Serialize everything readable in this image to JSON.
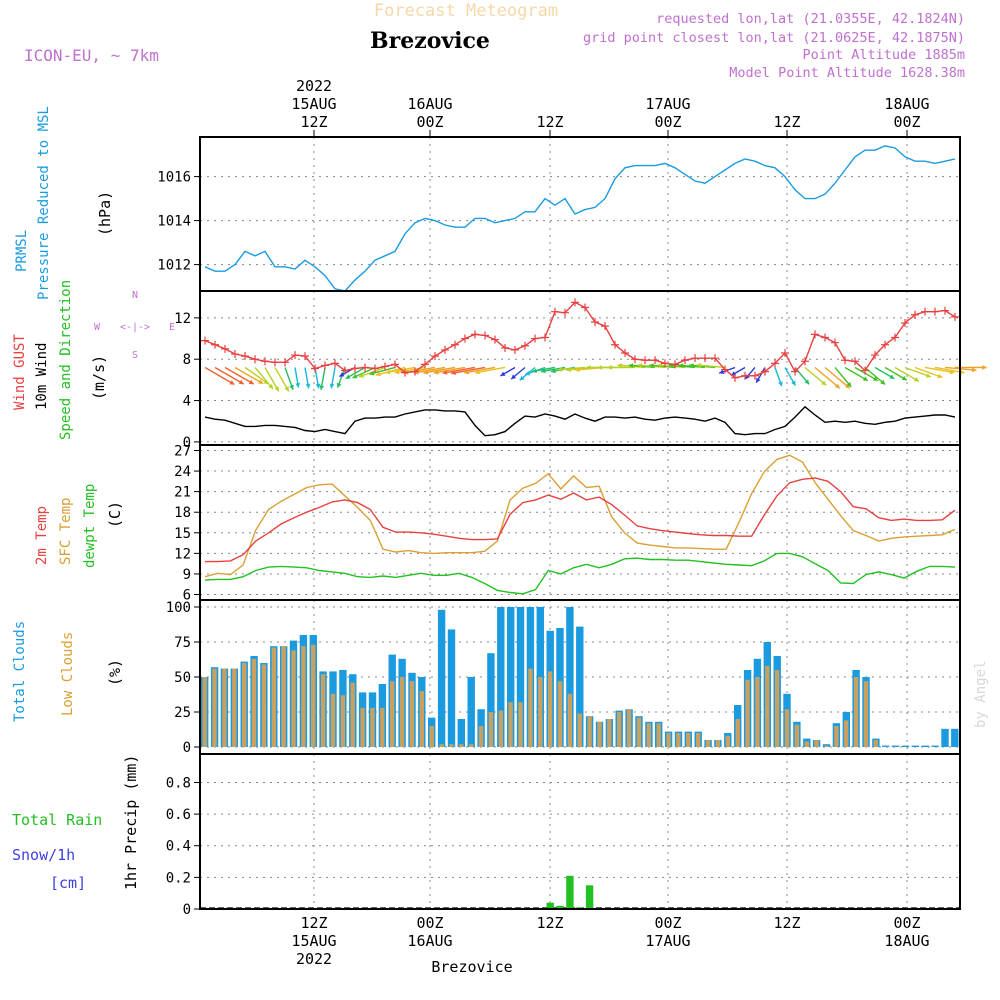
{
  "header": {
    "title": "Forecast Meteogram",
    "location": "Brezovice",
    "model": "ICON-EU, ~ 7km",
    "requested": "requested lon,lat (21.0355E, 42.1824N)",
    "gridpoint": "grid point closest lon,lat (21.0625E, 42.1875N)",
    "point_alt": "Point Altitude 1885m",
    "model_alt": "Model Point Altitude 1628.38m",
    "credit": "by Angel",
    "footer_location": "Brezovice"
  },
  "colors": {
    "pressure": "#1a9be0",
    "gust": "#e84040",
    "wind": "#000000",
    "sfc_temp": "#d9a033",
    "t2m": "#e84040",
    "dewpt": "#22c022",
    "total_clouds": "#1a9be0",
    "low_clouds": "#c8a060",
    "rain": "#22c022",
    "snow": "#4040e0",
    "header": "#c070d0"
  },
  "time_axis": {
    "top_ticks": [
      {
        "line1": "2022",
        "line2": "15AUG",
        "line3": "12Z"
      },
      {
        "line1": "",
        "line2": "16AUG",
        "line3": "00Z"
      },
      {
        "line1": "",
        "line2": "",
        "line3": "12Z"
      },
      {
        "line1": "",
        "line2": "17AUG",
        "line3": "00Z"
      },
      {
        "line1": "",
        "line2": "",
        "line3": "12Z"
      },
      {
        "line1": "",
        "line2": "18AUG",
        "line3": "00Z"
      }
    ],
    "bottom_ticks": [
      {
        "line1": "12Z",
        "line2": "15AUG",
        "line3": "2022"
      },
      {
        "line1": "00Z",
        "line2": "16AUG",
        "line3": ""
      },
      {
        "line1": "12Z",
        "line2": "",
        "line3": ""
      },
      {
        "line1": "00Z",
        "line2": "17AUG",
        "line3": ""
      },
      {
        "line1": "12Z",
        "line2": "",
        "line3": ""
      },
      {
        "line1": "00Z",
        "line2": "18AUG",
        "line3": ""
      }
    ]
  },
  "chart_data": [
    {
      "type": "line",
      "title": "PRMSL Pressure Reduced to MSL",
      "label_colored_1": "PRMSL",
      "label_colored_2": "Pressure Reduced to MSL",
      "ylabel": "(hPa)",
      "ylim": [
        1010.8,
        1017.8
      ],
      "yticks": [
        1012,
        1014,
        1016
      ],
      "series": [
        {
          "name": "PRMSL",
          "values": [
            1011.9,
            1011.7,
            1011.7,
            1012.0,
            1012.6,
            1012.4,
            1012.6,
            1011.9,
            1011.9,
            1011.8,
            1012.2,
            1011.9,
            1011.5,
            1010.9,
            1010.8,
            1011.3,
            1011.7,
            1012.2,
            1012.4,
            1012.6,
            1013.4,
            1013.9,
            1014.1,
            1014.0,
            1013.8,
            1013.7,
            1013.7,
            1014.1,
            1014.1,
            1013.9,
            1014.0,
            1014.1,
            1014.4,
            1014.4,
            1015.0,
            1014.7,
            1015.0,
            1014.3,
            1014.5,
            1014.6,
            1015.0,
            1015.9,
            1016.4,
            1016.5,
            1016.5,
            1016.5,
            1016.6,
            1016.4,
            1016.1,
            1015.8,
            1015.7,
            1016.0,
            1016.3,
            1016.6,
            1016.8,
            1016.7,
            1016.5,
            1016.4,
            1016.0,
            1015.4,
            1015.0,
            1015.0,
            1015.2,
            1015.7,
            1016.3,
            1016.9,
            1017.2,
            1017.2,
            1017.4,
            1017.3,
            1016.9,
            1016.7,
            1016.7,
            1016.6,
            1016.7,
            1016.8
          ]
        }
      ]
    },
    {
      "type": "line",
      "title": "Wind GUST / 10m Wind Speed and Direction",
      "label_gust": "Wind GUST",
      "label_wind": "10m Wind",
      "label_dir": "Speed and Direction",
      "ylabel": "(m/s)",
      "compass": {
        "n": "N",
        "s": "S",
        "e": "E",
        "w": "W",
        "mid": "<-|->",
        "vert": "^|v",
        "low": "S<-|-> "
      },
      "ylim": [
        -0.3,
        14.6
      ],
      "yticks": [
        0,
        4,
        8,
        12
      ],
      "series": [
        {
          "name": "Wind GUST",
          "values": [
            9.8,
            9.4,
            9.0,
            8.5,
            8.3,
            8.0,
            7.8,
            7.7,
            7.7,
            8.4,
            8.3,
            7.1,
            7.4,
            7.6,
            6.9,
            7.1,
            7.2,
            7.1,
            7.3,
            7.5,
            6.7,
            6.8,
            7.5,
            8.3,
            8.9,
            9.4,
            10.0,
            10.4,
            10.3,
            9.9,
            9.1,
            8.9,
            9.3,
            10.0,
            10.1,
            12.6,
            12.5,
            13.5,
            13.0,
            11.6,
            11.2,
            9.4,
            8.6,
            8.0,
            7.9,
            7.9,
            7.6,
            7.5,
            7.9,
            8.1,
            8.1,
            8.1,
            7.0,
            6.2,
            6.4,
            6.4,
            6.8,
            7.6,
            8.6,
            6.8,
            7.8,
            10.4,
            10.1,
            9.6,
            7.9,
            7.8,
            6.9,
            8.4,
            9.4,
            10.1,
            11.5,
            12.3,
            12.6,
            12.6,
            12.7,
            12.1
          ]
        },
        {
          "name": "10m Wind",
          "values": [
            2.4,
            2.2,
            2.1,
            1.8,
            1.5,
            1.5,
            1.6,
            1.6,
            1.5,
            1.4,
            1.1,
            1.0,
            1.2,
            1.0,
            0.8,
            2.0,
            2.3,
            2.3,
            2.4,
            2.4,
            2.7,
            2.9,
            3.1,
            3.1,
            3.0,
            3.0,
            2.9,
            1.6,
            0.6,
            0.7,
            1.0,
            1.8,
            2.5,
            2.4,
            2.7,
            2.5,
            2.2,
            2.7,
            2.3,
            2.0,
            2.4,
            2.4,
            2.3,
            2.4,
            2.2,
            2.1,
            2.3,
            2.4,
            2.3,
            2.2,
            2.0,
            2.3,
            1.9,
            0.8,
            0.7,
            0.8,
            0.8,
            1.2,
            1.5,
            2.4,
            3.4,
            2.6,
            1.9,
            2.0,
            1.9,
            2.0,
            1.8,
            1.7,
            1.9,
            2.0,
            2.3,
            2.4,
            2.5,
            2.6,
            2.6,
            2.4
          ]
        }
      ],
      "wind_barbs": {
        "speed": [
          6.5,
          6.3,
          6.3,
          6.1,
          5.2,
          5.0,
          4.9,
          4.9,
          3.9,
          3.1,
          3.3,
          3.3,
          3.7,
          3.3,
          3.4,
          2.5,
          3.6,
          4.2,
          4.9,
          4.6,
          5.5,
          5.5,
          5.7,
          6.0,
          5.9,
          6.0,
          5.9,
          6.2,
          6.6,
          5.8,
          5.6,
          2.2,
          2.5,
          3.0,
          3.3,
          3.8,
          4.1,
          4.1,
          4.9,
          5.2,
          5.5,
          5.2,
          4.9,
          4.9,
          4.9,
          4.6,
          4.9,
          4.5,
          4.9,
          4.6,
          4.6,
          4.5,
          5.2,
          2.2,
          2.0,
          1.8,
          2.4,
          3.0,
          3.2,
          3.5,
          4.9,
          6.1,
          6.1,
          4.3,
          4.6,
          4.6,
          4.6,
          3.6,
          4.3,
          4.9,
          4.9,
          5.3,
          5.5,
          5.5,
          5.9,
          5.9
        ],
        "dir_deg": [
          300,
          300,
          300,
          300,
          305,
          320,
          330,
          330,
          340,
          350,
          350,
          350,
          10,
          10,
          20,
          60,
          60,
          65,
          70,
          75,
          75,
          80,
          80,
          80,
          80,
          80,
          80,
          80,
          80,
          80,
          80,
          60,
          50,
          50,
          70,
          80,
          80,
          80,
          85,
          85,
          85,
          90,
          90,
          90,
          95,
          95,
          95,
          95,
          95,
          95,
          95,
          95,
          95,
          70,
          60,
          40,
          30,
          340,
          330,
          320,
          310,
          310,
          310,
          320,
          300,
          300,
          310,
          300,
          300,
          300,
          290,
          290,
          280,
          280,
          275,
          270
        ]
      }
    },
    {
      "type": "line",
      "title": "2m Temp / SFC Temp / dewpt Temp",
      "label_t2m": "2m Temp",
      "label_sfc": "SFC Temp",
      "label_dew": "dewpt Temp",
      "ylabel": "(C)",
      "ylim": [
        5.2,
        27.8
      ],
      "yticks": [
        6,
        9,
        12,
        15,
        18,
        21,
        24,
        27
      ],
      "series": [
        {
          "name": "2m Temp",
          "values": [
            10.8,
            10.8,
            10.9,
            11.8,
            13.8,
            15.0,
            16.3,
            17.2,
            18.0,
            18.7,
            19.5,
            19.8,
            19.4,
            18.4,
            15.8,
            15.1,
            15.1,
            15.0,
            14.8,
            14.5,
            14.2,
            14.0,
            14.0,
            14.1,
            17.7,
            19.4,
            19.8,
            20.5,
            19.9,
            20.8,
            19.8,
            20.2,
            19.1,
            17.6,
            16.0,
            15.6,
            15.3,
            15.1,
            14.9,
            14.7,
            14.6,
            14.6,
            14.5,
            14.5,
            17.6,
            20.4,
            22.3,
            22.8,
            23.0,
            22.5,
            21.0,
            18.8,
            18.5,
            17.2,
            16.8,
            17.0,
            16.8,
            16.8,
            16.9,
            18.3
          ]
        },
        {
          "name": "SFC Temp",
          "values": [
            8.6,
            9.1,
            8.9,
            10.3,
            15.4,
            18.4,
            19.6,
            20.6,
            21.6,
            22.0,
            22.1,
            20.4,
            18.7,
            16.8,
            12.6,
            12.2,
            12.4,
            12.1,
            12.0,
            12.1,
            12.1,
            12.1,
            12.3,
            13.8,
            19.8,
            21.5,
            22.2,
            23.6,
            21.4,
            23.3,
            21.6,
            21.8,
            17.3,
            15.0,
            13.5,
            13.2,
            13.0,
            12.8,
            12.8,
            12.7,
            12.6,
            12.6,
            16.5,
            20.7,
            23.9,
            25.7,
            26.3,
            25.3,
            22.3,
            19.9,
            17.5,
            15.3,
            14.6,
            13.8,
            14.2,
            14.4,
            14.5,
            14.6,
            14.7,
            15.5
          ]
        },
        {
          "name": "dewpt Temp",
          "values": [
            8.1,
            8.2,
            8.2,
            8.6,
            9.5,
            10.0,
            10.1,
            10.0,
            9.9,
            9.5,
            9.3,
            9.1,
            8.6,
            8.5,
            8.7,
            8.5,
            8.8,
            9.1,
            8.8,
            8.8,
            9.1,
            8.5,
            7.6,
            6.6,
            6.3,
            6.1,
            6.7,
            9.5,
            9.0,
            9.9,
            10.4,
            9.9,
            10.4,
            11.2,
            11.3,
            11.1,
            11.1,
            11.0,
            11.0,
            10.8,
            10.6,
            10.4,
            10.3,
            10.2,
            10.9,
            12.0,
            12.0,
            11.5,
            10.5,
            9.5,
            7.7,
            7.6,
            8.9,
            9.3,
            8.9,
            8.4,
            9.4,
            10.1,
            10.1,
            10.0
          ]
        }
      ]
    },
    {
      "type": "bar",
      "title": "Total Clouds / Low Clouds",
      "label_total": "Total Clouds",
      "label_low": "Low Clouds",
      "ylabel": "(%)",
      "ylim": [
        -5,
        105
      ],
      "yticks": [
        0,
        25,
        50,
        75,
        100
      ],
      "series": [
        {
          "name": "Total Clouds",
          "values": [
            50,
            57,
            56,
            56,
            61,
            65,
            60,
            72,
            72,
            76,
            80,
            80,
            54,
            54,
            55,
            52,
            39,
            39,
            45,
            66,
            63,
            53,
            50,
            21,
            98,
            84,
            20,
            50,
            27,
            67,
            100,
            100,
            100,
            100,
            100,
            83,
            85,
            100,
            86,
            22,
            18,
            20,
            26,
            27,
            22,
            18,
            18,
            11,
            11,
            11,
            11,
            5,
            5,
            10,
            30,
            55,
            63,
            75,
            65,
            38,
            18,
            6,
            5,
            2,
            17,
            25,
            55,
            50,
            6,
            1,
            1,
            1,
            1,
            1,
            1,
            13,
            13
          ]
        },
        {
          "name": "Low Clouds",
          "values": [
            50,
            56,
            56,
            56,
            60,
            63,
            59,
            71,
            72,
            69,
            72,
            73,
            52,
            38,
            37,
            46,
            28,
            28,
            28,
            47,
            50,
            47,
            40,
            15,
            2,
            2,
            2,
            2,
            15,
            25,
            26,
            32,
            32,
            56,
            50,
            54,
            47,
            38,
            24,
            22,
            18,
            20,
            25,
            27,
            21,
            17,
            17,
            10,
            10,
            10,
            10,
            5,
            5,
            8,
            20,
            48,
            50,
            58,
            55,
            27,
            16,
            4,
            5,
            1,
            15,
            19,
            50,
            47,
            5,
            0,
            0,
            0,
            0,
            0,
            0,
            0,
            0
          ]
        }
      ]
    },
    {
      "type": "bar",
      "title": "1hr Precip (mm)",
      "label_rain": "Total Rain",
      "label_snow": "Snow/1h",
      "label_cm": "[cm]",
      "ylabel": "1hr Precip (mm)",
      "ylim": [
        0,
        0.98
      ],
      "yticks": [
        "0",
        "0.2",
        "0.4",
        "0.6",
        "0.8"
      ],
      "series": [
        {
          "name": "Total Rain",
          "values": [
            0,
            0,
            0,
            0,
            0,
            0,
            0,
            0,
            0,
            0,
            0,
            0,
            0,
            0,
            0,
            0,
            0,
            0,
            0,
            0,
            0,
            0,
            0,
            0,
            0,
            0,
            0,
            0,
            0,
            0,
            0,
            0,
            0,
            0,
            0,
            0.04,
            0.02,
            0.21,
            0.01,
            0.15,
            0,
            0,
            0,
            0,
            0,
            0,
            0,
            0,
            0,
            0,
            0,
            0,
            0,
            0,
            0,
            0,
            0,
            0,
            0,
            0,
            0,
            0,
            0,
            0,
            0,
            0,
            0,
            0,
            0,
            0,
            0,
            0,
            0,
            0,
            0,
            0,
            0
          ]
        }
      ]
    }
  ]
}
